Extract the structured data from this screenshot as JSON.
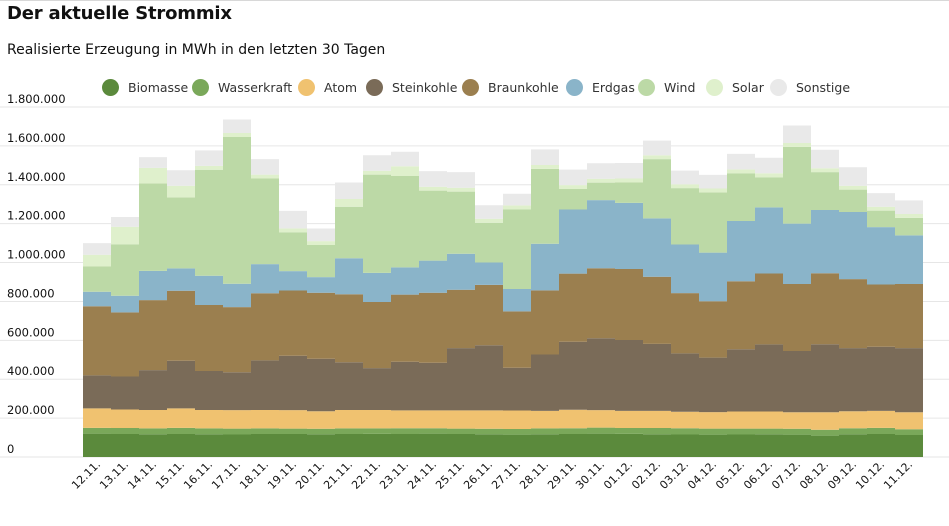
{
  "header": {
    "title": "Der aktuelle Strommix",
    "subtitle": "Realisierte Erzeugung in MWh in den letzten 30 Tagen"
  },
  "chart_data": {
    "type": "area",
    "stacked": true,
    "step": true,
    "legend_placement": "top",
    "grid": true,
    "xlabel": "",
    "ylabel": "",
    "ylim": [
      0,
      1800000
    ],
    "yticks": [
      0,
      200000,
      400000,
      600000,
      800000,
      1000000,
      1200000,
      1400000,
      1600000,
      1800000
    ],
    "ytick_labels": [
      "0",
      "200.000",
      "400.000",
      "600.000",
      "800.000",
      "1.000.000",
      "1.200.000",
      "1.400.000",
      "1.600.000",
      "1.800.000"
    ],
    "categories": [
      "12.11.",
      "13.11.",
      "14.11.",
      "15.11.",
      "16.11.",
      "17.11.",
      "18.11.",
      "19.11.",
      "20.11.",
      "21.11.",
      "22.11.",
      "23.11.",
      "24.11.",
      "25.11.",
      "26.11.",
      "27.11.",
      "28.11.",
      "29.11.",
      "30.11.",
      "01.12.",
      "02.12.",
      "03.12.",
      "04.12.",
      "05.12.",
      "06.12.",
      "07.12.",
      "08.12.",
      "09.12.",
      "10.12.",
      "11.12."
    ],
    "series": [
      {
        "name": "Biomasse",
        "color": "#5b8a3c",
        "values": [
          120000,
          118000,
          117000,
          118000,
          117000,
          116000,
          118000,
          118000,
          117000,
          118000,
          119000,
          118000,
          120000,
          118000,
          117000,
          115000,
          117000,
          118000,
          120000,
          119000,
          117000,
          116000,
          115000,
          116000,
          117000,
          115000,
          110000,
          117000,
          118000,
          113000
        ]
      },
      {
        "name": "Wasserkraft",
        "color": "#7aa85a",
        "values": [
          30000,
          31000,
          30000,
          32000,
          30000,
          30000,
          29000,
          28000,
          28000,
          29000,
          28000,
          30000,
          28000,
          28000,
          28000,
          29000,
          30000,
          30000,
          31000,
          30000,
          32000,
          32000,
          31000,
          30000,
          29000,
          30000,
          30000,
          31000,
          32000,
          30000
        ]
      },
      {
        "name": "Atom",
        "color": "#f0c270",
        "values": [
          100000,
          95000,
          95000,
          100000,
          95000,
          95000,
          95000,
          95000,
          90000,
          95000,
          95000,
          92000,
          92000,
          94000,
          95000,
          95000,
          90000,
          95000,
          90000,
          88000,
          88000,
          85000,
          85000,
          88000,
          88000,
          85000,
          90000,
          87000,
          87000,
          87000
        ]
      },
      {
        "name": "Steinkohle",
        "color": "#7a6b58",
        "values": [
          170000,
          170000,
          205000,
          245000,
          200000,
          195000,
          255000,
          280000,
          270000,
          245000,
          215000,
          250000,
          245000,
          320000,
          335000,
          220000,
          290000,
          350000,
          370000,
          365000,
          345000,
          300000,
          280000,
          320000,
          345000,
          315000,
          350000,
          325000,
          330000,
          330000
        ]
      },
      {
        "name": "Braunkohle",
        "color": "#9b7f4f",
        "values": [
          355000,
          330000,
          360000,
          360000,
          340000,
          335000,
          345000,
          335000,
          340000,
          350000,
          340000,
          345000,
          360000,
          300000,
          310000,
          290000,
          330000,
          350000,
          360000,
          365000,
          345000,
          310000,
          290000,
          350000,
          365000,
          345000,
          365000,
          355000,
          320000,
          330000
        ]
      },
      {
        "name": "Erdgas",
        "color": "#8ab4c9",
        "values": [
          75000,
          85000,
          150000,
          115000,
          150000,
          120000,
          150000,
          100000,
          80000,
          185000,
          150000,
          140000,
          165000,
          185000,
          115000,
          115000,
          240000,
          330000,
          350000,
          340000,
          300000,
          250000,
          250000,
          310000,
          340000,
          310000,
          325000,
          345000,
          295000,
          250000
        ]
      },
      {
        "name": "Wind",
        "color": "#bcd9a6",
        "values": [
          130000,
          265000,
          450000,
          365000,
          545000,
          755000,
          440000,
          200000,
          165000,
          265000,
          505000,
          470000,
          360000,
          320000,
          205000,
          410000,
          385000,
          105000,
          90000,
          105000,
          305000,
          290000,
          310000,
          245000,
          155000,
          395000,
          195000,
          115000,
          85000,
          90000
        ]
      },
      {
        "name": "Solar",
        "color": "#dff0cc",
        "values": [
          60000,
          90000,
          80000,
          60000,
          20000,
          20000,
          20000,
          20000,
          20000,
          40000,
          20000,
          50000,
          20000,
          20000,
          20000,
          20000,
          20000,
          20000,
          20000,
          20000,
          20000,
          20000,
          20000,
          20000,
          20000,
          20000,
          20000,
          20000,
          20000,
          20000
        ]
      },
      {
        "name": "Sonstige",
        "color": "#e9e9e9",
        "values": [
          60000,
          50000,
          55000,
          80000,
          80000,
          70000,
          80000,
          90000,
          65000,
          85000,
          80000,
          75000,
          80000,
          80000,
          70000,
          60000,
          80000,
          80000,
          80000,
          80000,
          75000,
          70000,
          70000,
          80000,
          80000,
          90000,
          95000,
          95000,
          70000,
          70000
        ]
      }
    ]
  }
}
